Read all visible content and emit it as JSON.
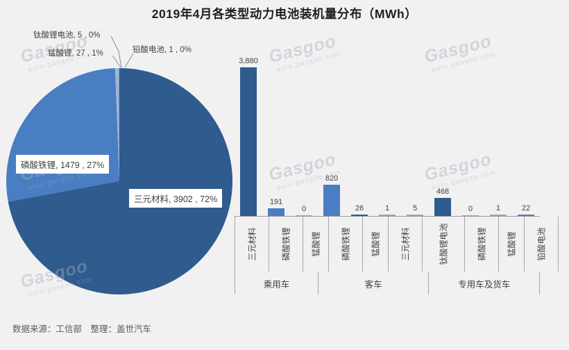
{
  "title": "2019年4月各类型动力电池装机量分布（MWh）",
  "footer": {
    "source_line": "数据来源：工信部　整理：盖世汽车"
  },
  "watermark": {
    "logo": "Gasgoo",
    "url": "auto.gasgoo.com"
  },
  "colors": {
    "dark_blue": "#2f5b8e",
    "medium_blue": "#4a7ec2",
    "pale_blue": "#8fa8c8",
    "background": "#f1f1f2",
    "axis_gray": "#a6a6a6"
  },
  "chart_data": [
    {
      "type": "pie",
      "title": "2019年4月各类型动力电池装机量分布（MWh）",
      "legend_position": "none",
      "slices": [
        {
          "label": "三元材料",
          "value": 3902,
          "pct": "72%",
          "display": "三元材料, 3902 , 72%",
          "color": "#2f5b8e"
        },
        {
          "label": "磷酸铁锂",
          "value": 1479,
          "pct": "27%",
          "display": "磷酸铁锂, 1479 , 27%",
          "color": "#4a7ec2"
        },
        {
          "label": "锰酸锂",
          "value": 27,
          "pct": "1%",
          "display": "锰酸锂, 27 , 1%",
          "color": "#9db6d4"
        },
        {
          "label": "钛酸锂电池",
          "value": 5,
          "pct": "0%",
          "display": "钛酸锂电池, 5 , 0%",
          "color": "#7f9dbf"
        },
        {
          "label": "铅酸电池",
          "value": 1,
          "pct": "0%",
          "display": "铅酸电池, 1 , 0%",
          "color": "#b0c4d9"
        }
      ]
    },
    {
      "type": "bar",
      "ylabel": "",
      "xlabel": "",
      "grid": false,
      "ymax_value": 3880,
      "groups": [
        {
          "label": "乘用车",
          "bars": [
            {
              "material": "三元材料",
              "value": 3880,
              "display": "3,880",
              "color": "#2f5b8e"
            },
            {
              "material": "磷酸铁锂",
              "value": 191,
              "display": "191",
              "color": "#4a7ec2"
            },
            {
              "material": "锰酸锂",
              "value": 0,
              "display": "0",
              "color": "#8fa8c8"
            }
          ]
        },
        {
          "label": "客车",
          "bars": [
            {
              "material": "磷酸铁锂",
              "value": 820,
              "display": "820",
              "color": "#4a7ec2"
            },
            {
              "material": "锰酸锂",
              "value": 26,
              "display": "26",
              "color": "#2f5b8e"
            },
            {
              "material": "三元材料",
              "value": 1,
              "display": "1",
              "color": "#8fa8c8"
            },
            {
              "material": "钛酸锂电池",
              "value": 5,
              "display": "5",
              "color": "#8fa8c8"
            }
          ]
        },
        {
          "label": "专用车及货车",
          "bars": [
            {
              "material": "磷酸铁锂",
              "value": 468,
              "display": "468",
              "color": "#2f5b8e"
            },
            {
              "material": "锰酸锂",
              "value": 0,
              "display": "0",
              "color": "#8fa8c8"
            },
            {
              "material": "铅酸电池",
              "value": 1,
              "display": "1",
              "color": "#8fa8c8"
            },
            {
              "material": "三元材料",
              "value": 22,
              "display": "22",
              "color": "#4a7ec2"
            }
          ]
        }
      ]
    }
  ]
}
